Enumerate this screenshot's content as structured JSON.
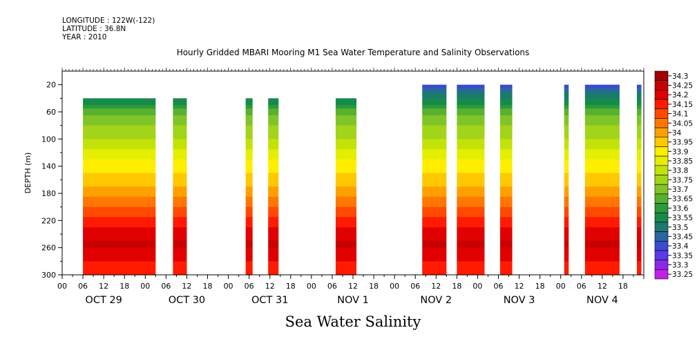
{
  "header": {
    "longitude": "LONGITUDE : 122W(-122)",
    "latitude": "LATITUDE : 36.8N",
    "year": "YEAR : 2010"
  },
  "chart_data": {
    "type": "heatmap",
    "title": "Hourly Gridded MBARI Mooring M1 Sea Water Temperature and Salinity Observations",
    "subtitle": "Sea Water Salinity",
    "ylabel": "DEPTH (m)",
    "xlabel": "",
    "x_unit": "hours",
    "xlim": [
      0,
      168
    ],
    "ylim": [
      300,
      0
    ],
    "y_ticks": [
      20,
      60,
      100,
      140,
      180,
      220,
      260,
      300
    ],
    "x_tick_labels": [
      "00",
      "06",
      "12",
      "18",
      "00",
      "06",
      "12",
      "18",
      "00",
      "06",
      "12",
      "18",
      "00",
      "06",
      "12",
      "18",
      "00",
      "06",
      "12",
      "18",
      "00",
      "06",
      "12",
      "18",
      "00",
      "06",
      "12",
      "18"
    ],
    "date_labels": [
      {
        "hour": 12,
        "label": "OCT 29"
      },
      {
        "hour": 36,
        "label": "OCT 30"
      },
      {
        "hour": 60,
        "label": "OCT 31"
      },
      {
        "hour": 84,
        "label": "NOV  1"
      },
      {
        "hour": 108,
        "label": "NOV  2"
      },
      {
        "hour": 132,
        "label": "NOV  3"
      },
      {
        "hour": 156,
        "label": "NOV  4"
      }
    ],
    "data_blocks": [
      {
        "start": 6,
        "end": 27,
        "top": 40
      },
      {
        "start": 32,
        "end": 36,
        "top": 40
      },
      {
        "start": 53,
        "end": 55,
        "top": 40
      },
      {
        "start": 59.5,
        "end": 62.5,
        "top": 40
      },
      {
        "start": 79,
        "end": 85,
        "top": 40
      },
      {
        "start": 104,
        "end": 111,
        "top": 20
      },
      {
        "start": 114,
        "end": 122,
        "top": 20
      },
      {
        "start": 126.5,
        "end": 130,
        "top": 20
      },
      {
        "start": 145,
        "end": 146.3,
        "top": 20
      },
      {
        "start": 151,
        "end": 161,
        "top": 20
      },
      {
        "start": 166,
        "end": 167.3,
        "top": 20
      }
    ],
    "profile": [
      {
        "depth": 20,
        "value": 33.42
      },
      {
        "depth": 40,
        "value": 33.55
      },
      {
        "depth": 60,
        "value": 33.68
      },
      {
        "depth": 80,
        "value": 33.75
      },
      {
        "depth": 100,
        "value": 33.8
      },
      {
        "depth": 120,
        "value": 33.87
      },
      {
        "depth": 140,
        "value": 33.93
      },
      {
        "depth": 160,
        "value": 33.98
      },
      {
        "depth": 180,
        "value": 34.03
      },
      {
        "depth": 200,
        "value": 34.1
      },
      {
        "depth": 220,
        "value": 34.17
      },
      {
        "depth": 240,
        "value": 34.23
      },
      {
        "depth": 255,
        "value": 34.26
      },
      {
        "depth": 270,
        "value": 34.22
      },
      {
        "depth": 285,
        "value": 34.19
      },
      {
        "depth": 300,
        "value": 34.17
      }
    ],
    "legend_levels": [
      "34.3",
      "34.25",
      "34.2",
      "34.15",
      "34.1",
      "34.05",
      "34",
      "33.95",
      "33.9",
      "33.85",
      "33.8",
      "33.75",
      "33.7",
      "33.65",
      "33.6",
      "33.55",
      "33.5",
      "33.45",
      "33.4",
      "33.35",
      "33.3",
      "33.25"
    ],
    "legend_colors": [
      "#a00000",
      "#c80000",
      "#e00000",
      "#ff1a00",
      "#ff4a00",
      "#ff7700",
      "#ffa000",
      "#ffc800",
      "#ffee00",
      "#e4ee00",
      "#c2e20a",
      "#a2d41a",
      "#80c428",
      "#58b030",
      "#2c9a38",
      "#168a4a",
      "#1a7a72",
      "#2a66a0",
      "#3a4ad2",
      "#5a3aea",
      "#8a2ae8",
      "#c020e8"
    ],
    "legend_placement": "right"
  }
}
